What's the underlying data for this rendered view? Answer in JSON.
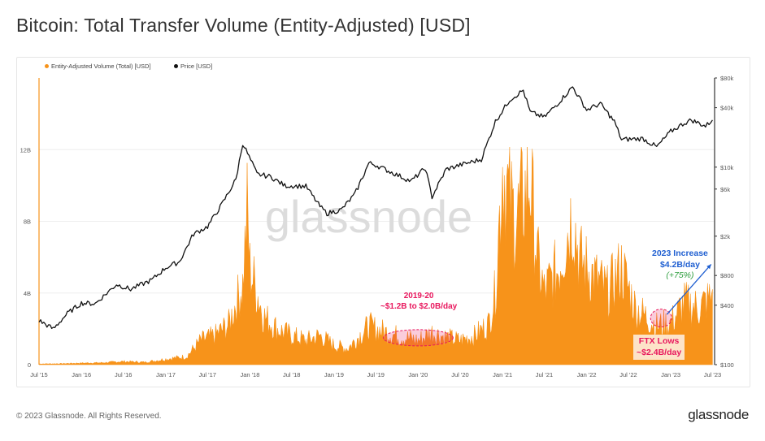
{
  "title": "Bitcoin: Total Transfer Volume (Entity-Adjusted) [USD]",
  "footer": {
    "copyright": "© 2023 Glassnode. All Rights Reserved.",
    "logo": "glassnode"
  },
  "watermark": "glassnode",
  "colors": {
    "volume": "#f7931a",
    "price": "#111111",
    "pink": "#e8175d",
    "blue": "#1f5fd1",
    "green": "#2e9e3e",
    "grid": "#eeeeee"
  },
  "legend": [
    {
      "label": "Entity-Adjusted Volume (Total) [USD]",
      "color": "#f7931a"
    },
    {
      "label": "Price [USD]",
      "color": "#111111"
    }
  ],
  "annotations": {
    "a2019": {
      "line1": "2019-20",
      "line2": "~$1.2B to $2.0B/day"
    },
    "a2023": {
      "line1": "2023 Increase",
      "line2": "$4.2B/day",
      "line3": "(+75%)"
    },
    "ftx": {
      "line1": "FTX Lows",
      "line2": "~$2.4B/day"
    }
  },
  "chart_data": {
    "type": "area",
    "x_ticks": [
      "Jul '15",
      "Jan '16",
      "Jul '16",
      "Jan '17",
      "Jul '17",
      "Jan '18",
      "Jul '18",
      "Jan '19",
      "Jul '19",
      "Jan '20",
      "Jul '20",
      "Jan '21",
      "Jul '21",
      "Jan '22",
      "Jul '22",
      "Jan '23",
      "Jul '23"
    ],
    "y_left": {
      "scale": "linear",
      "ticks": [
        "0",
        "4B",
        "8B",
        "12B"
      ],
      "tick_values": [
        0,
        4,
        8,
        12
      ],
      "range": [
        0,
        16
      ]
    },
    "y_right": {
      "scale": "log",
      "ticks": [
        "$100",
        "$400",
        "$800",
        "$2k",
        "$6k",
        "$10k",
        "$40k",
        "$80k"
      ],
      "tick_values": [
        100,
        400,
        800,
        2000,
        6000,
        10000,
        40000,
        80000
      ],
      "range": [
        100,
        80000
      ]
    },
    "series": [
      {
        "name": "Entity-Adjusted Volume (Total) [USD]",
        "axis": "left",
        "unit": "USD billions",
        "points": [
          [
            "2015-07",
            0.05
          ],
          [
            "2015-10",
            0.06
          ],
          [
            "2016-01",
            0.1
          ],
          [
            "2016-04",
            0.12
          ],
          [
            "2016-07",
            0.2
          ],
          [
            "2016-10",
            0.15
          ],
          [
            "2017-01",
            0.35
          ],
          [
            "2017-04",
            0.5
          ],
          [
            "2017-06",
            1.5
          ],
          [
            "2017-08",
            1.8
          ],
          [
            "2017-10",
            2.5
          ],
          [
            "2017-12",
            5.0
          ],
          [
            "2017-12-20",
            9.5
          ],
          [
            "2018-01",
            6.0
          ],
          [
            "2018-02",
            4.5
          ],
          [
            "2018-03",
            3.0
          ],
          [
            "2018-05",
            2.2
          ],
          [
            "2018-07",
            1.8
          ],
          [
            "2018-09",
            1.5
          ],
          [
            "2018-11",
            1.8
          ],
          [
            "2019-01",
            1.2
          ],
          [
            "2019-03",
            1.0
          ],
          [
            "2019-06",
            2.4
          ],
          [
            "2019-07",
            2.2
          ],
          [
            "2019-10",
            1.8
          ],
          [
            "2020-01",
            1.5
          ],
          [
            "2020-03",
            2.0
          ],
          [
            "2020-05",
            1.7
          ],
          [
            "2020-07",
            1.5
          ],
          [
            "2020-09",
            1.8
          ],
          [
            "2020-11",
            2.5
          ],
          [
            "2020-12",
            4.5
          ],
          [
            "2021-01",
            12.5
          ],
          [
            "2021-02",
            10.0
          ],
          [
            "2021-03",
            9.0
          ],
          [
            "2021-05",
            11.5
          ],
          [
            "2021-06",
            6.5
          ],
          [
            "2021-07",
            4.5
          ],
          [
            "2021-09",
            6.0
          ],
          [
            "2021-11",
            9.5
          ],
          [
            "2021-12",
            6.5
          ],
          [
            "2022-02",
            5.5
          ],
          [
            "2022-04",
            4.5
          ],
          [
            "2022-06",
            6.0
          ],
          [
            "2022-08",
            3.5
          ],
          [
            "2022-10",
            2.8
          ],
          [
            "2022-11",
            2.4
          ],
          [
            "2023-01",
            2.6
          ],
          [
            "2023-03",
            3.8
          ],
          [
            "2023-05",
            3.5
          ],
          [
            "2023-07",
            4.2
          ]
        ]
      },
      {
        "name": "Price [USD]",
        "axis": "right",
        "unit": "USD",
        "points": [
          [
            "2015-07",
            280
          ],
          [
            "2015-09",
            230
          ],
          [
            "2015-11",
            330
          ],
          [
            "2016-01",
            420
          ],
          [
            "2016-03",
            415
          ],
          [
            "2016-06",
            650
          ],
          [
            "2016-08",
            580
          ],
          [
            "2016-11",
            720
          ],
          [
            "2017-01",
            960
          ],
          [
            "2017-03",
            1100
          ],
          [
            "2017-05",
            2100
          ],
          [
            "2017-07",
            2500
          ],
          [
            "2017-09",
            4200
          ],
          [
            "2017-11",
            7500
          ],
          [
            "2017-12",
            17500
          ],
          [
            "2018-02",
            8500
          ],
          [
            "2018-04",
            8000
          ],
          [
            "2018-06",
            6500
          ],
          [
            "2018-09",
            6400
          ],
          [
            "2018-11",
            4000
          ],
          [
            "2018-12",
            3400
          ],
          [
            "2019-02",
            3700
          ],
          [
            "2019-04",
            5300
          ],
          [
            "2019-06",
            11000
          ],
          [
            "2019-07",
            10500
          ],
          [
            "2019-09",
            9000
          ],
          [
            "2019-12",
            7200
          ],
          [
            "2020-02",
            9800
          ],
          [
            "2020-03",
            5000
          ],
          [
            "2020-05",
            9500
          ],
          [
            "2020-07",
            10500
          ],
          [
            "2020-10",
            12000
          ],
          [
            "2020-12",
            29000
          ],
          [
            "2021-02",
            48000
          ],
          [
            "2021-04",
            60000
          ],
          [
            "2021-05",
            36000
          ],
          [
            "2021-07",
            32000
          ],
          [
            "2021-09",
            45000
          ],
          [
            "2021-11",
            65000
          ],
          [
            "2022-01",
            38000
          ],
          [
            "2022-03",
            44000
          ],
          [
            "2022-05",
            29000
          ],
          [
            "2022-06",
            19000
          ],
          [
            "2022-09",
            19500
          ],
          [
            "2022-11",
            16000
          ],
          [
            "2023-01",
            23000
          ],
          [
            "2023-03",
            28000
          ],
          [
            "2023-04",
            30000
          ],
          [
            "2023-06",
            26000
          ],
          [
            "2023-07",
            30000
          ]
        ]
      }
    ],
    "legend_position": "top-left",
    "grid": true
  }
}
